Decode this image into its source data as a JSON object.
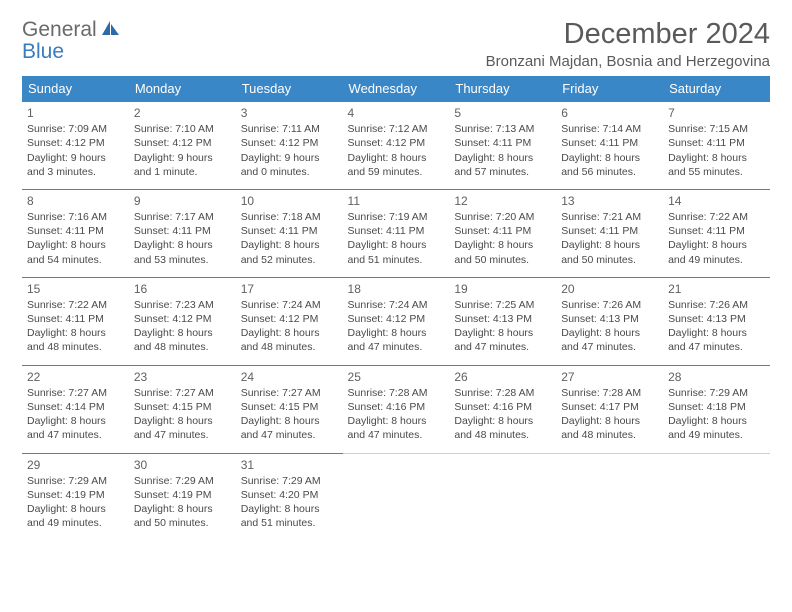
{
  "logo": {
    "line1": "General",
    "line2": "Blue"
  },
  "title": "December 2024",
  "location": "Bronzani Majdan, Bosnia and Herzegovina",
  "colors": {
    "header_bg": "#3a87c7",
    "row_border": "#3a87c7",
    "text": "#4a4a4a",
    "title_text": "#5a5a5a"
  },
  "layout": {
    "columns": 7,
    "font_family": "Arial",
    "cell_fontsize": 10.5,
    "daynum_fontsize": 12,
    "title_fontsize": 29,
    "location_fontsize": 15
  },
  "weekdays": [
    "Sunday",
    "Monday",
    "Tuesday",
    "Wednesday",
    "Thursday",
    "Friday",
    "Saturday"
  ],
  "weeks": [
    [
      {
        "n": "1",
        "sr": "Sunrise: 7:09 AM",
        "ss": "Sunset: 4:12 PM",
        "d1": "Daylight: 9 hours",
        "d2": "and 3 minutes."
      },
      {
        "n": "2",
        "sr": "Sunrise: 7:10 AM",
        "ss": "Sunset: 4:12 PM",
        "d1": "Daylight: 9 hours",
        "d2": "and 1 minute."
      },
      {
        "n": "3",
        "sr": "Sunrise: 7:11 AM",
        "ss": "Sunset: 4:12 PM",
        "d1": "Daylight: 9 hours",
        "d2": "and 0 minutes."
      },
      {
        "n": "4",
        "sr": "Sunrise: 7:12 AM",
        "ss": "Sunset: 4:12 PM",
        "d1": "Daylight: 8 hours",
        "d2": "and 59 minutes."
      },
      {
        "n": "5",
        "sr": "Sunrise: 7:13 AM",
        "ss": "Sunset: 4:11 PM",
        "d1": "Daylight: 8 hours",
        "d2": "and 57 minutes."
      },
      {
        "n": "6",
        "sr": "Sunrise: 7:14 AM",
        "ss": "Sunset: 4:11 PM",
        "d1": "Daylight: 8 hours",
        "d2": "and 56 minutes."
      },
      {
        "n": "7",
        "sr": "Sunrise: 7:15 AM",
        "ss": "Sunset: 4:11 PM",
        "d1": "Daylight: 8 hours",
        "d2": "and 55 minutes."
      }
    ],
    [
      {
        "n": "8",
        "sr": "Sunrise: 7:16 AM",
        "ss": "Sunset: 4:11 PM",
        "d1": "Daylight: 8 hours",
        "d2": "and 54 minutes."
      },
      {
        "n": "9",
        "sr": "Sunrise: 7:17 AM",
        "ss": "Sunset: 4:11 PM",
        "d1": "Daylight: 8 hours",
        "d2": "and 53 minutes."
      },
      {
        "n": "10",
        "sr": "Sunrise: 7:18 AM",
        "ss": "Sunset: 4:11 PM",
        "d1": "Daylight: 8 hours",
        "d2": "and 52 minutes."
      },
      {
        "n": "11",
        "sr": "Sunrise: 7:19 AM",
        "ss": "Sunset: 4:11 PM",
        "d1": "Daylight: 8 hours",
        "d2": "and 51 minutes."
      },
      {
        "n": "12",
        "sr": "Sunrise: 7:20 AM",
        "ss": "Sunset: 4:11 PM",
        "d1": "Daylight: 8 hours",
        "d2": "and 50 minutes."
      },
      {
        "n": "13",
        "sr": "Sunrise: 7:21 AM",
        "ss": "Sunset: 4:11 PM",
        "d1": "Daylight: 8 hours",
        "d2": "and 50 minutes."
      },
      {
        "n": "14",
        "sr": "Sunrise: 7:22 AM",
        "ss": "Sunset: 4:11 PM",
        "d1": "Daylight: 8 hours",
        "d2": "and 49 minutes."
      }
    ],
    [
      {
        "n": "15",
        "sr": "Sunrise: 7:22 AM",
        "ss": "Sunset: 4:11 PM",
        "d1": "Daylight: 8 hours",
        "d2": "and 48 minutes."
      },
      {
        "n": "16",
        "sr": "Sunrise: 7:23 AM",
        "ss": "Sunset: 4:12 PM",
        "d1": "Daylight: 8 hours",
        "d2": "and 48 minutes."
      },
      {
        "n": "17",
        "sr": "Sunrise: 7:24 AM",
        "ss": "Sunset: 4:12 PM",
        "d1": "Daylight: 8 hours",
        "d2": "and 48 minutes."
      },
      {
        "n": "18",
        "sr": "Sunrise: 7:24 AM",
        "ss": "Sunset: 4:12 PM",
        "d1": "Daylight: 8 hours",
        "d2": "and 47 minutes."
      },
      {
        "n": "19",
        "sr": "Sunrise: 7:25 AM",
        "ss": "Sunset: 4:13 PM",
        "d1": "Daylight: 8 hours",
        "d2": "and 47 minutes."
      },
      {
        "n": "20",
        "sr": "Sunrise: 7:26 AM",
        "ss": "Sunset: 4:13 PM",
        "d1": "Daylight: 8 hours",
        "d2": "and 47 minutes."
      },
      {
        "n": "21",
        "sr": "Sunrise: 7:26 AM",
        "ss": "Sunset: 4:13 PM",
        "d1": "Daylight: 8 hours",
        "d2": "and 47 minutes."
      }
    ],
    [
      {
        "n": "22",
        "sr": "Sunrise: 7:27 AM",
        "ss": "Sunset: 4:14 PM",
        "d1": "Daylight: 8 hours",
        "d2": "and 47 minutes."
      },
      {
        "n": "23",
        "sr": "Sunrise: 7:27 AM",
        "ss": "Sunset: 4:15 PM",
        "d1": "Daylight: 8 hours",
        "d2": "and 47 minutes."
      },
      {
        "n": "24",
        "sr": "Sunrise: 7:27 AM",
        "ss": "Sunset: 4:15 PM",
        "d1": "Daylight: 8 hours",
        "d2": "and 47 minutes."
      },
      {
        "n": "25",
        "sr": "Sunrise: 7:28 AM",
        "ss": "Sunset: 4:16 PM",
        "d1": "Daylight: 8 hours",
        "d2": "and 47 minutes."
      },
      {
        "n": "26",
        "sr": "Sunrise: 7:28 AM",
        "ss": "Sunset: 4:16 PM",
        "d1": "Daylight: 8 hours",
        "d2": "and 48 minutes."
      },
      {
        "n": "27",
        "sr": "Sunrise: 7:28 AM",
        "ss": "Sunset: 4:17 PM",
        "d1": "Daylight: 8 hours",
        "d2": "and 48 minutes."
      },
      {
        "n": "28",
        "sr": "Sunrise: 7:29 AM",
        "ss": "Sunset: 4:18 PM",
        "d1": "Daylight: 8 hours",
        "d2": "and 49 minutes."
      }
    ],
    [
      {
        "n": "29",
        "sr": "Sunrise: 7:29 AM",
        "ss": "Sunset: 4:19 PM",
        "d1": "Daylight: 8 hours",
        "d2": "and 49 minutes."
      },
      {
        "n": "30",
        "sr": "Sunrise: 7:29 AM",
        "ss": "Sunset: 4:19 PM",
        "d1": "Daylight: 8 hours",
        "d2": "and 50 minutes."
      },
      {
        "n": "31",
        "sr": "Sunrise: 7:29 AM",
        "ss": "Sunset: 4:20 PM",
        "d1": "Daylight: 8 hours",
        "d2": "and 51 minutes."
      },
      null,
      null,
      null,
      null
    ]
  ]
}
